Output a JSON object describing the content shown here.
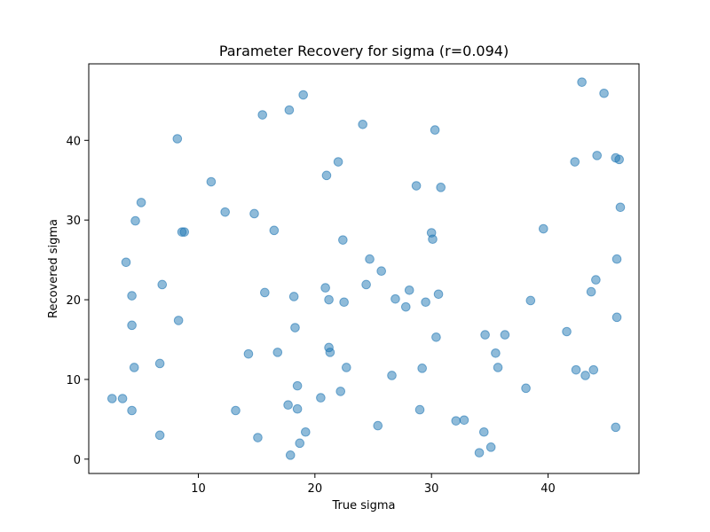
{
  "chart_data": {
    "type": "scatter",
    "title": "Parameter Recovery for sigma (r=0.094)",
    "xlabel": "True sigma",
    "ylabel": "Recovered sigma",
    "xlim": [
      0.6,
      47.8
    ],
    "ylim": [
      -1.8,
      49.6
    ],
    "xticks": [
      10,
      20,
      30,
      40
    ],
    "yticks": [
      0,
      10,
      20,
      30,
      40
    ],
    "grid": false,
    "marker_color": "#1f77b4",
    "marker_alpha": 0.5,
    "points": [
      {
        "x": 2.6,
        "y": 7.6
      },
      {
        "x": 3.5,
        "y": 7.6
      },
      {
        "x": 4.3,
        "y": 6.1
      },
      {
        "x": 3.8,
        "y": 24.7
      },
      {
        "x": 4.3,
        "y": 20.5
      },
      {
        "x": 4.3,
        "y": 16.8
      },
      {
        "x": 4.5,
        "y": 11.5
      },
      {
        "x": 4.6,
        "y": 29.9
      },
      {
        "x": 5.1,
        "y": 32.2
      },
      {
        "x": 6.7,
        "y": 3.0
      },
      {
        "x": 6.7,
        "y": 12.0
      },
      {
        "x": 6.9,
        "y": 21.9
      },
      {
        "x": 8.2,
        "y": 40.2
      },
      {
        "x": 8.3,
        "y": 17.4
      },
      {
        "x": 8.6,
        "y": 28.5
      },
      {
        "x": 8.8,
        "y": 28.5
      },
      {
        "x": 11.1,
        "y": 34.8
      },
      {
        "x": 12.3,
        "y": 31.0
      },
      {
        "x": 13.2,
        "y": 6.1
      },
      {
        "x": 14.3,
        "y": 13.2
      },
      {
        "x": 14.8,
        "y": 30.8
      },
      {
        "x": 15.1,
        "y": 2.7
      },
      {
        "x": 15.5,
        "y": 43.2
      },
      {
        "x": 15.7,
        "y": 20.9
      },
      {
        "x": 16.5,
        "y": 28.7
      },
      {
        "x": 16.8,
        "y": 13.4
      },
      {
        "x": 17.7,
        "y": 6.8
      },
      {
        "x": 17.8,
        "y": 43.8
      },
      {
        "x": 17.9,
        "y": 0.5
      },
      {
        "x": 18.2,
        "y": 20.4
      },
      {
        "x": 18.3,
        "y": 16.5
      },
      {
        "x": 18.5,
        "y": 9.2
      },
      {
        "x": 18.5,
        "y": 6.3
      },
      {
        "x": 18.7,
        "y": 2.0
      },
      {
        "x": 19.0,
        "y": 45.7
      },
      {
        "x": 19.2,
        "y": 3.4
      },
      {
        "x": 20.5,
        "y": 7.7
      },
      {
        "x": 20.9,
        "y": 21.5
      },
      {
        "x": 21.0,
        "y": 35.6
      },
      {
        "x": 21.2,
        "y": 20.0
      },
      {
        "x": 21.2,
        "y": 14.0
      },
      {
        "x": 21.3,
        "y": 13.4
      },
      {
        "x": 22.0,
        "y": 37.3
      },
      {
        "x": 22.2,
        "y": 8.5
      },
      {
        "x": 22.4,
        "y": 27.5
      },
      {
        "x": 22.5,
        "y": 19.7
      },
      {
        "x": 22.7,
        "y": 11.5
      },
      {
        "x": 24.1,
        "y": 42.0
      },
      {
        "x": 24.4,
        "y": 21.9
      },
      {
        "x": 24.7,
        "y": 25.1
      },
      {
        "x": 25.4,
        "y": 4.2
      },
      {
        "x": 25.7,
        "y": 23.6
      },
      {
        "x": 26.6,
        "y": 10.5
      },
      {
        "x": 26.9,
        "y": 20.1
      },
      {
        "x": 27.8,
        "y": 19.1
      },
      {
        "x": 28.1,
        "y": 21.2
      },
      {
        "x": 28.7,
        "y": 34.3
      },
      {
        "x": 29.0,
        "y": 6.2
      },
      {
        "x": 29.2,
        "y": 11.4
      },
      {
        "x": 29.5,
        "y": 19.7
      },
      {
        "x": 30.0,
        "y": 28.4
      },
      {
        "x": 30.1,
        "y": 27.6
      },
      {
        "x": 30.3,
        "y": 41.3
      },
      {
        "x": 30.4,
        "y": 15.3
      },
      {
        "x": 30.6,
        "y": 20.7
      },
      {
        "x": 30.8,
        "y": 34.1
      },
      {
        "x": 32.1,
        "y": 4.8
      },
      {
        "x": 32.8,
        "y": 4.9
      },
      {
        "x": 34.1,
        "y": 0.8
      },
      {
        "x": 34.5,
        "y": 3.4
      },
      {
        "x": 34.6,
        "y": 15.6
      },
      {
        "x": 35.1,
        "y": 1.5
      },
      {
        "x": 35.5,
        "y": 13.3
      },
      {
        "x": 35.7,
        "y": 11.5
      },
      {
        "x": 36.3,
        "y": 15.6
      },
      {
        "x": 38.1,
        "y": 8.9
      },
      {
        "x": 38.5,
        "y": 19.9
      },
      {
        "x": 39.6,
        "y": 28.9
      },
      {
        "x": 41.6,
        "y": 16.0
      },
      {
        "x": 42.3,
        "y": 37.3
      },
      {
        "x": 42.4,
        "y": 11.2
      },
      {
        "x": 42.9,
        "y": 47.3
      },
      {
        "x": 43.2,
        "y": 10.5
      },
      {
        "x": 43.7,
        "y": 21.0
      },
      {
        "x": 43.9,
        "y": 11.2
      },
      {
        "x": 44.1,
        "y": 22.5
      },
      {
        "x": 44.2,
        "y": 38.1
      },
      {
        "x": 44.8,
        "y": 45.9
      },
      {
        "x": 45.8,
        "y": 37.8
      },
      {
        "x": 45.8,
        "y": 4.0
      },
      {
        "x": 45.9,
        "y": 17.8
      },
      {
        "x": 45.9,
        "y": 25.1
      },
      {
        "x": 46.1,
        "y": 37.6
      },
      {
        "x": 46.2,
        "y": 31.6
      }
    ]
  }
}
